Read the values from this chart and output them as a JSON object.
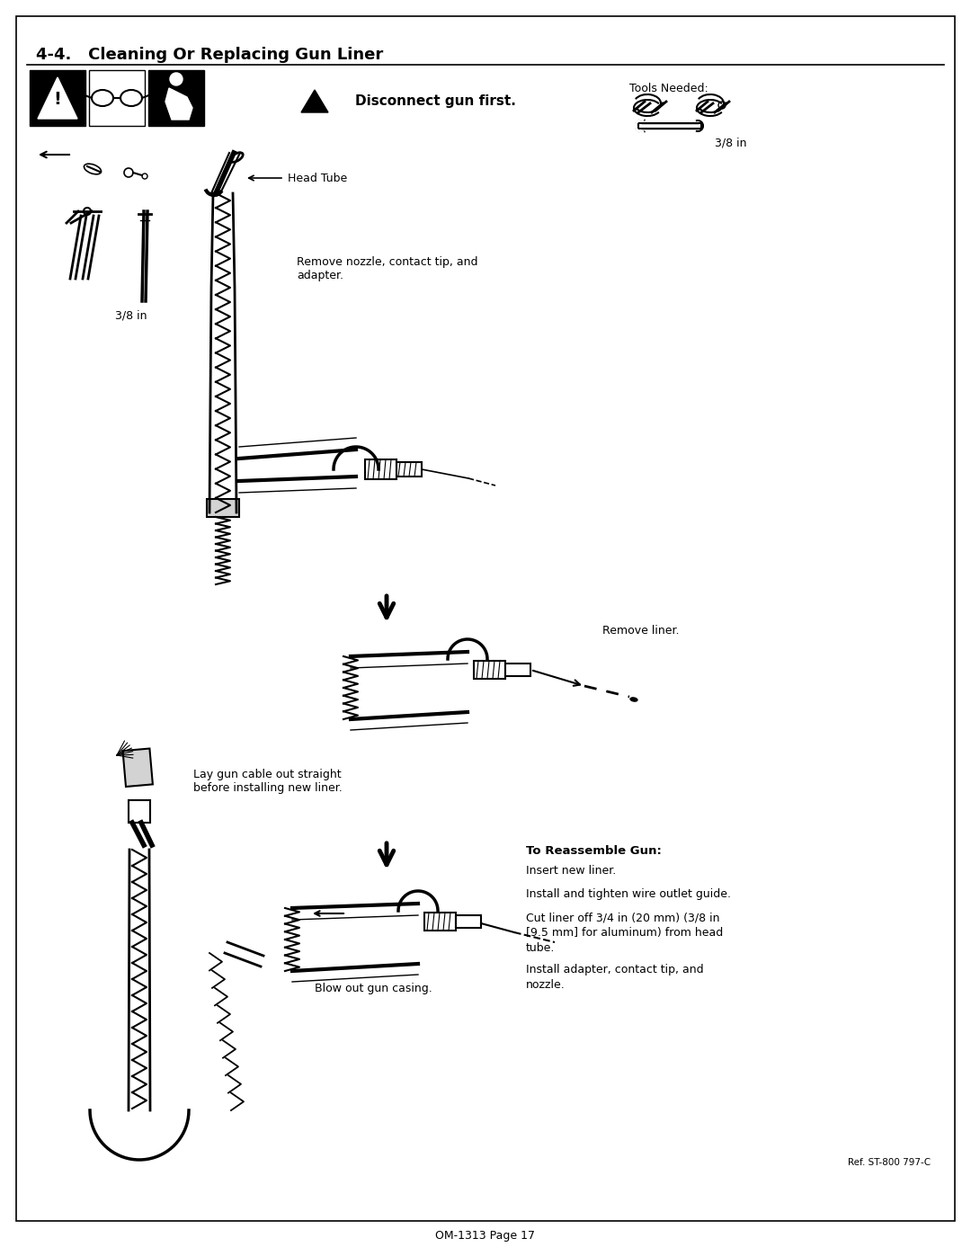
{
  "page_title": "4-4.   Cleaning Or Replacing Gun Liner",
  "page_number": "OM-1313 Page 17",
  "ref": "Ref. ST-800 797-C",
  "warning_text": "Disconnect gun first.",
  "tools_needed": "Tools Needed:",
  "tools_size": "3/8 in",
  "head_tube_label": "Head Tube",
  "remove_nozzle_label": "Remove nozzle, contact tip, and\nadapter.",
  "remove_liner_label": "Remove liner.",
  "lay_gun_label": "Lay gun cable out straight\nbefore installing new liner.",
  "blow_out_label": "Blow out gun casing.",
  "reassemble_title": "To Reassemble Gun:",
  "reassemble_steps": [
    "Insert new liner.",
    "Install and tighten wire outlet guide.",
    "Cut liner off 3/4 in (20 mm) (3/8 in\n[9.5 mm] for aluminum) from head\ntube.",
    "Install adapter, contact tip, and\nnozzle."
  ],
  "bg_color": "#ffffff",
  "text_color": "#000000",
  "border_color": "#000000",
  "title_fontsize": 13,
  "body_fontsize": 9,
  "small_fontsize": 8
}
